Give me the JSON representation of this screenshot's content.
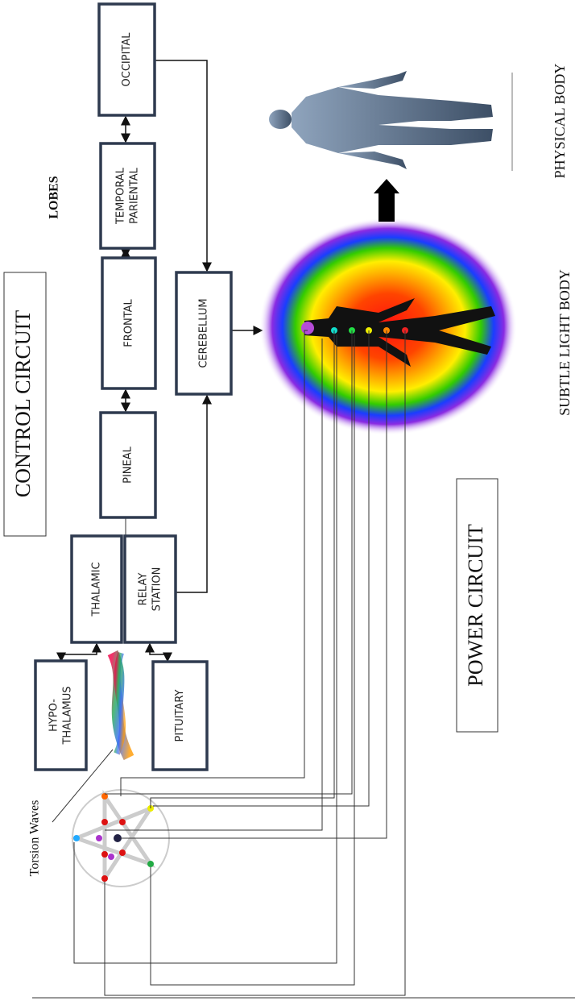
{
  "title": "CONTROL CIRCUIT",
  "lobes_label": "LOBES",
  "power_label": "POWER CIRCUIT",
  "subtle_label": "SUBTLE LIGHT BODY",
  "physical_label": "PHYSICAL BODY",
  "torsion_label": "Torsion Waves",
  "nodes": [
    {
      "lines": [
        "OCCIPITAL"
      ]
    },
    {
      "lines": [
        "TEMPORAL",
        "PARIENTAL"
      ]
    },
    {
      "lines": [
        "FRONTAL"
      ]
    },
    {
      "lines": [
        "PINEAL"
      ]
    },
    {
      "lines": [
        "THALAMIC"
      ]
    },
    {
      "lines": [
        "RELAY",
        "STATION"
      ]
    },
    {
      "lines": [
        "CEREBELLUM"
      ]
    },
    {
      "lines": [
        "HYPO-",
        "THALAMUS"
      ]
    },
    {
      "lines": [
        "PITUITARY"
      ]
    }
  ]
}
